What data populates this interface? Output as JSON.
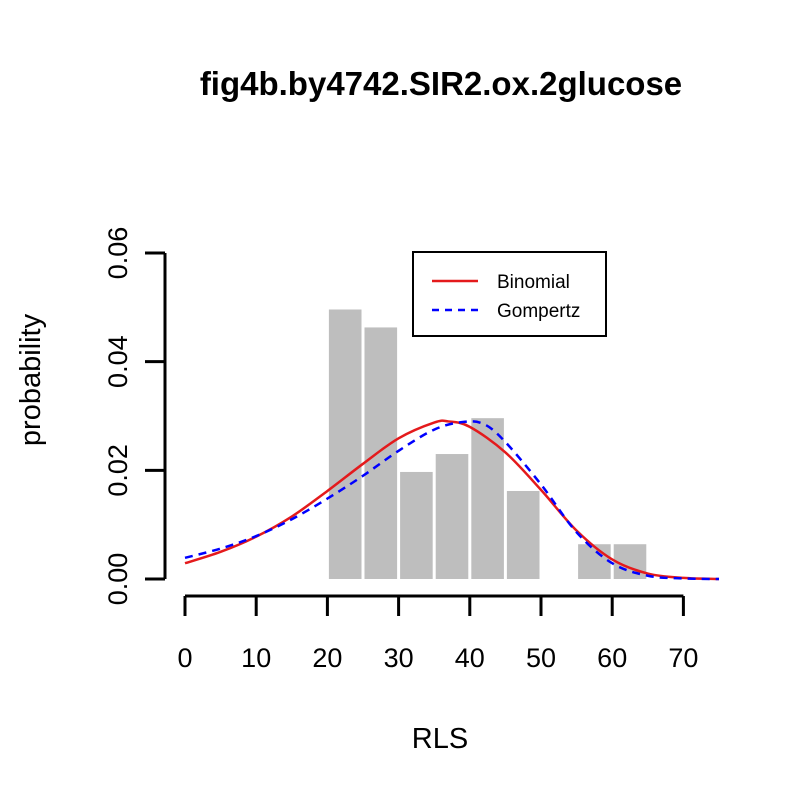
{
  "chart_data": {
    "type": "bar",
    "title": "fig4b.by4742.SIR2.ox.2glucose",
    "xlabel": "RLS",
    "ylabel": "probability",
    "xlim": [
      0,
      75
    ],
    "ylim": [
      0,
      0.06
    ],
    "x_ticks": [
      "0",
      "10",
      "20",
      "30",
      "40",
      "50",
      "60",
      "70"
    ],
    "y_ticks": [
      "0.00",
      "0.02",
      "0.04",
      "0.06"
    ],
    "bar_color": "#bebebe",
    "bars": [
      {
        "x0": 20,
        "x1": 25,
        "value": 0.0496
      },
      {
        "x0": 25,
        "x1": 30,
        "value": 0.0463
      },
      {
        "x0": 30,
        "x1": 35,
        "value": 0.0197
      },
      {
        "x0": 35,
        "x1": 40,
        "value": 0.023
      },
      {
        "x0": 40,
        "x1": 45,
        "value": 0.0296
      },
      {
        "x0": 45,
        "x1": 50,
        "value": 0.0162
      },
      {
        "x0": 50,
        "x1": 55,
        "value": 0.0
      },
      {
        "x0": 55,
        "x1": 60,
        "value": 0.0064
      },
      {
        "x0": 60,
        "x1": 65,
        "value": 0.0064
      }
    ],
    "series": [
      {
        "name": "Binomial",
        "color": "#e41a1c",
        "dash": "solid",
        "x": [
          0,
          5,
          10,
          15,
          20,
          25,
          30,
          35,
          37,
          40,
          45,
          50,
          55,
          60,
          65,
          70,
          75
        ],
        "y": [
          0.0029,
          0.005,
          0.0078,
          0.0115,
          0.0162,
          0.0212,
          0.0259,
          0.0288,
          0.029,
          0.028,
          0.0233,
          0.0164,
          0.0089,
          0.0036,
          0.001,
          0.0002,
          0.0
        ]
      },
      {
        "name": "Gompertz",
        "color": "#0000ff",
        "dash": "dashed",
        "x": [
          0,
          5,
          10,
          15,
          20,
          25,
          30,
          35,
          39,
          42,
          45,
          50,
          55,
          60,
          65,
          70,
          75
        ],
        "y": [
          0.0039,
          0.0056,
          0.0079,
          0.011,
          0.0148,
          0.019,
          0.0236,
          0.0275,
          0.0289,
          0.0285,
          0.0252,
          0.0174,
          0.0086,
          0.0029,
          0.0006,
          0.0001,
          0.0
        ]
      }
    ],
    "legend": {
      "position": "top-right",
      "entries": [
        "Binomial",
        "Gompertz"
      ]
    }
  }
}
